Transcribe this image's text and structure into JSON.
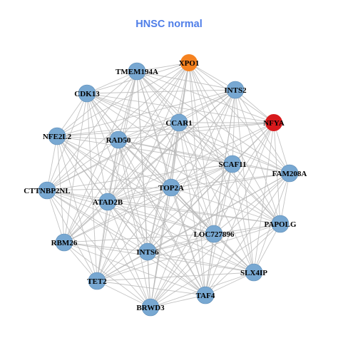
{
  "title": "HNSC normal",
  "colors": {
    "title": "#4f7ee8",
    "edge": "#b8b8b8",
    "node_default": "#78a8d2",
    "node_highlight_orange": "#f58220",
    "node_highlight_red": "#d7191c",
    "node_stroke": "#5a8ab5"
  },
  "network": {
    "nodes": [
      {
        "id": "XPO1",
        "label": "XPO1",
        "color": "orange"
      },
      {
        "id": "TMEM194A",
        "label": "TMEM194A",
        "color": "default"
      },
      {
        "id": "INTS2",
        "label": "INTS2",
        "color": "default"
      },
      {
        "id": "CDK13",
        "label": "CDK13",
        "color": "default"
      },
      {
        "id": "NFYA",
        "label": "NFYA",
        "color": "red"
      },
      {
        "id": "CCAR1",
        "label": "CCAR1",
        "color": "default"
      },
      {
        "id": "NFE2L2",
        "label": "NFE2L2",
        "color": "default"
      },
      {
        "id": "RAD50",
        "label": "RAD50",
        "color": "default"
      },
      {
        "id": "SCAF11",
        "label": "SCAF11",
        "color": "default"
      },
      {
        "id": "FAM208A",
        "label": "FAM208A",
        "color": "default"
      },
      {
        "id": "TOP2A",
        "label": "TOP2A",
        "color": "default"
      },
      {
        "id": "CTTNBP2NL",
        "label": "CTTNBP2NL",
        "color": "default"
      },
      {
        "id": "ATAD2B",
        "label": "ATAD2B",
        "color": "default"
      },
      {
        "id": "PAPOLG",
        "label": "PAPOLG",
        "color": "default"
      },
      {
        "id": "LOC727896",
        "label": "LOC727896",
        "color": "default"
      },
      {
        "id": "RBM26",
        "label": "RBM26",
        "color": "default"
      },
      {
        "id": "INTS6",
        "label": "INTS6",
        "color": "default"
      },
      {
        "id": "SLX4IP",
        "label": "SLX4IP",
        "color": "default"
      },
      {
        "id": "TET2",
        "label": "TET2",
        "color": "default"
      },
      {
        "id": "TAF4",
        "label": "TAF4",
        "color": "default"
      },
      {
        "id": "BRWD3",
        "label": "BRWD3",
        "color": "default"
      }
    ],
    "edges": "dense"
  }
}
